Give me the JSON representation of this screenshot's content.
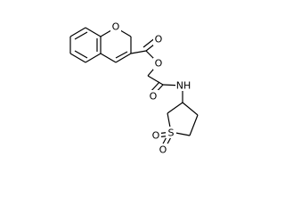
{
  "molecule": {
    "atoms": [
      {
        "label": "O"
      },
      {
        "label": "O"
      },
      {
        "label": "O"
      },
      {
        "label": "O"
      },
      {
        "label": "NH"
      },
      {
        "label": "S"
      },
      {
        "label": "O"
      },
      {
        "label": "O"
      }
    ]
  }
}
